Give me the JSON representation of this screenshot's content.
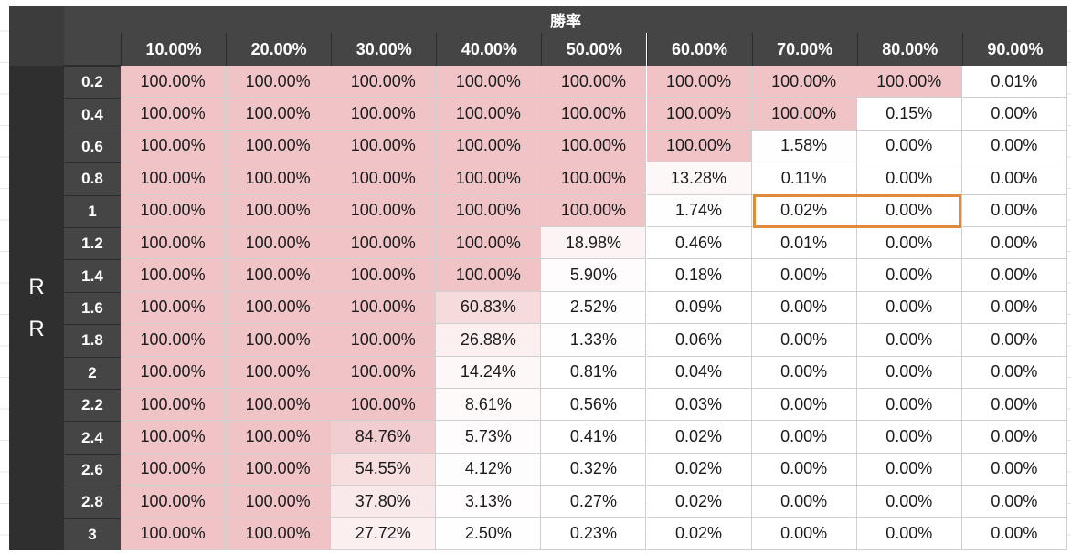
{
  "chart_data": {
    "type": "heatmap",
    "title": "勝率",
    "ylabel": "RR",
    "x": [
      "10.00%",
      "20.00%",
      "30.00%",
      "40.00%",
      "50.00%",
      "60.00%",
      "70.00%",
      "80.00%",
      "90.00%"
    ],
    "y": [
      "0.2",
      "0.4",
      "0.6",
      "0.8",
      "1",
      "1.2",
      "1.4",
      "1.6",
      "1.8",
      "2",
      "2.2",
      "2.4",
      "2.6",
      "2.8",
      "3"
    ],
    "values": [
      [
        "100.00%",
        "100.00%",
        "100.00%",
        "100.00%",
        "100.00%",
        "100.00%",
        "100.00%",
        "100.00%",
        "0.01%"
      ],
      [
        "100.00%",
        "100.00%",
        "100.00%",
        "100.00%",
        "100.00%",
        "100.00%",
        "100.00%",
        "0.15%",
        "0.00%"
      ],
      [
        "100.00%",
        "100.00%",
        "100.00%",
        "100.00%",
        "100.00%",
        "100.00%",
        "1.58%",
        "0.00%",
        "0.00%"
      ],
      [
        "100.00%",
        "100.00%",
        "100.00%",
        "100.00%",
        "100.00%",
        "13.28%",
        "0.11%",
        "0.00%",
        "0.00%"
      ],
      [
        "100.00%",
        "100.00%",
        "100.00%",
        "100.00%",
        "100.00%",
        "1.74%",
        "0.02%",
        "0.00%",
        "0.00%"
      ],
      [
        "100.00%",
        "100.00%",
        "100.00%",
        "100.00%",
        "18.98%",
        "0.46%",
        "0.01%",
        "0.00%",
        "0.00%"
      ],
      [
        "100.00%",
        "100.00%",
        "100.00%",
        "100.00%",
        "5.90%",
        "0.18%",
        "0.00%",
        "0.00%",
        "0.00%"
      ],
      [
        "100.00%",
        "100.00%",
        "100.00%",
        "60.83%",
        "2.52%",
        "0.09%",
        "0.00%",
        "0.00%",
        "0.00%"
      ],
      [
        "100.00%",
        "100.00%",
        "100.00%",
        "26.88%",
        "1.33%",
        "0.06%",
        "0.00%",
        "0.00%",
        "0.00%"
      ],
      [
        "100.00%",
        "100.00%",
        "100.00%",
        "14.24%",
        "0.81%",
        "0.04%",
        "0.00%",
        "0.00%",
        "0.00%"
      ],
      [
        "100.00%",
        "100.00%",
        "100.00%",
        "8.61%",
        "0.56%",
        "0.03%",
        "0.00%",
        "0.00%",
        "0.00%"
      ],
      [
        "100.00%",
        "100.00%",
        "84.76%",
        "5.73%",
        "0.41%",
        "0.02%",
        "0.00%",
        "0.00%",
        "0.00%"
      ],
      [
        "100.00%",
        "100.00%",
        "54.55%",
        "4.12%",
        "0.32%",
        "0.02%",
        "0.00%",
        "0.00%",
        "0.00%"
      ],
      [
        "100.00%",
        "100.00%",
        "37.80%",
        "3.13%",
        "0.27%",
        "0.02%",
        "0.00%",
        "0.00%",
        "0.00%"
      ],
      [
        "100.00%",
        "100.00%",
        "27.72%",
        "2.50%",
        "0.23%",
        "0.02%",
        "0.00%",
        "0.00%",
        "0.00%"
      ]
    ],
    "highlight": {
      "row": "1",
      "columns": [
        "70.00%",
        "80.00%"
      ]
    },
    "colors": {
      "header_bg": "#454545",
      "header_text": "#ffffff",
      "heat_max": "#f0c4c7",
      "heat_min": "#ffffff",
      "highlight_border": "#e08a3a"
    }
  }
}
